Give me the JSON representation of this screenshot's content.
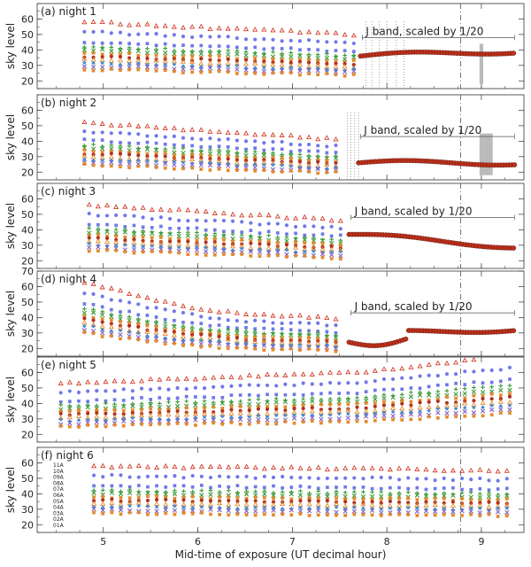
{
  "chart_data": {
    "type": "scatter",
    "xlabel": "Mid-time of exposure (UT decimal hour)",
    "x_ticks": [
      5,
      6,
      7,
      8,
      9
    ],
    "xlim": [
      4.3,
      9.45
    ],
    "panels": [
      {
        "label": "(a) night 1",
        "ylabel": "sky level",
        "ylim": [
          15,
          70
        ],
        "y_ticks": [
          20,
          30,
          40,
          50,
          60
        ],
        "x_range": [
          4.8,
          7.65
        ],
        "gap_x": 7.7,
        "j_start": 7.72,
        "j_end": 9.35,
        "j_label": "J band, scaled by 1/20",
        "j_line_y": 48,
        "dotted_lines": [
          7.78,
          7.84,
          7.92,
          8.0,
          8.1,
          8.18
        ],
        "gray_bar": [
          8.98,
          9.02,
          18,
          44
        ],
        "top": {
          "start": 58,
          "end": 50
        },
        "j_base": 36,
        "trend": "flat"
      },
      {
        "label": "(b) night 2",
        "ylabel": "sky level",
        "ylim": [
          15,
          70
        ],
        "y_ticks": [
          20,
          30,
          40,
          50,
          60
        ],
        "x_range": [
          4.8,
          7.55
        ],
        "gap_x": 7.62,
        "j_start": 7.7,
        "j_end": 9.35,
        "j_label": "J band, scaled by 1/20",
        "j_line_y": 43,
        "dotted_lines": [
          7.58,
          7.62,
          7.66,
          7.7
        ],
        "gray_bar": [
          8.98,
          9.12,
          18,
          45
        ],
        "top": {
          "start": 52,
          "end": 41
        },
        "j_base": 26,
        "trend": "flat"
      },
      {
        "label": "(c) night 3",
        "ylabel": "sky level",
        "ylim": [
          15,
          70
        ],
        "y_ticks": [
          20,
          30,
          40,
          50,
          60
        ],
        "x_range": [
          4.85,
          7.55
        ],
        "gap_x": 7.6,
        "j_start": 7.6,
        "j_end": 9.35,
        "j_label": "J band, scaled by 1/20",
        "j_line_y": 48,
        "dotted_lines": [],
        "gray_bar": null,
        "top": {
          "start": 56,
          "end": 50
        },
        "j_base": 37,
        "trend": "down"
      },
      {
        "label": "(d) night 4",
        "ylabel": "sky level",
        "ylim": [
          15,
          70
        ],
        "y_ticks": [
          20,
          30,
          40,
          50,
          60,
          70
        ],
        "x_range": [
          4.8,
          7.55
        ],
        "gap_x": 7.6,
        "j_start": 7.6,
        "j_end": 9.35,
        "j_label": "J band, scaled by 1/20",
        "j_line_y": 43,
        "dotted_lines": [],
        "gray_bar": null,
        "top": {
          "start": 63,
          "end": 44
        },
        "j_base": 24,
        "trend": "dip"
      },
      {
        "label": "(e) night 5",
        "ylabel": "sky level",
        "ylim": [
          15,
          70
        ],
        "y_ticks": [
          20,
          30,
          40,
          50,
          60
        ],
        "x_range": [
          4.55,
          9.35
        ],
        "gap_x": null,
        "j_start": null,
        "j_end": null,
        "j_label": "",
        "j_line_y": null,
        "dotted_lines": [],
        "gray_bar": null,
        "top": {
          "start": 53,
          "end": 64
        },
        "j_base": null,
        "trend": "rise"
      },
      {
        "label": "(f) night 6",
        "ylabel": "sky level",
        "ylim": [
          15,
          70
        ],
        "y_ticks": [
          20,
          30,
          40,
          50,
          60
        ],
        "x_range": [
          4.9,
          9.35
        ],
        "gap_x": null,
        "j_start": null,
        "j_end": null,
        "j_label": "",
        "j_line_y": null,
        "dotted_lines": [],
        "gray_bar": null,
        "top": {
          "start": 58,
          "end": 55
        },
        "j_base": null,
        "trend": "flat"
      }
    ],
    "dashdot_x": 8.78,
    "series_offsets": [
      0,
      -6,
      -12,
      -15,
      -17,
      -19,
      -21,
      -23,
      -25,
      -27,
      -29
    ],
    "series_colors": [
      "#d0402a",
      "#6f78e8",
      "#6f78e8",
      "#3a9a3a",
      "#3a9a3a",
      "#e58a2a",
      "#b03020",
      "#e58a2a",
      "#4a8ad0",
      "#8060c0",
      "#e58a2a"
    ],
    "series_markers": [
      "triangle",
      "circle",
      "square",
      "cross",
      "x",
      "square",
      "circle",
      "triangle",
      "diamond",
      "x",
      "square"
    ],
    "j_marker_color": "#c0301a",
    "legend_labels": [
      "11A",
      "10A",
      "09A",
      "08A",
      "07A",
      "06A",
      "05A",
      "04A",
      "03A",
      "02A",
      "01A"
    ]
  }
}
